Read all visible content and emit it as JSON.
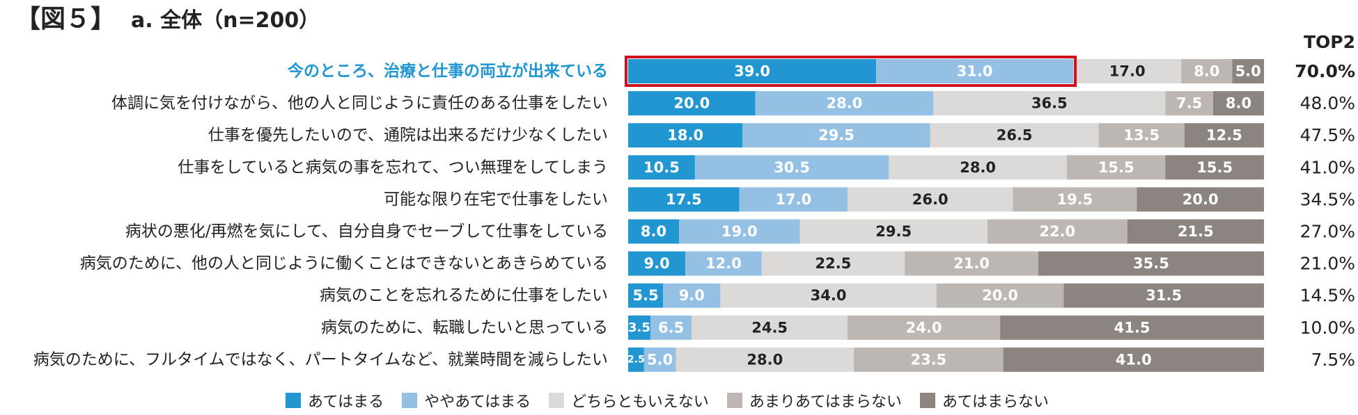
{
  "title": {
    "figure": "【図５】",
    "subtitle": "a. 全体（n=200）"
  },
  "top2_header": "TOP2",
  "colors": {
    "strong_agree": "#2196d0",
    "agree": "#94c1e3",
    "neutral": "#dcdad9",
    "disagree": "#bcb7b3",
    "strong_disagree": "#8c8480",
    "highlight_label": "#1f96d0",
    "highlight_box": "#d0101a",
    "text_dark": "#222222",
    "text_light": "#ffffff"
  },
  "chart_data": {
    "type": "bar",
    "orientation": "horizontal",
    "stacked": true,
    "unit": "%",
    "xlim": [
      0,
      100
    ],
    "categories": [
      "今のところ、治療と仕事の両立が出来ている",
      "体調に気を付けながら、他の人と同じように責任のある仕事をしたい",
      "仕事を優先したいので、通院は出来るだけ少なくしたい",
      "仕事をしていると病気の事を忘れて、つい無理をしてしまう",
      "可能な限り在宅で仕事をしたい",
      "病状の悪化/再燃を気にして、自分自身でセーブして仕事をしている",
      "病気のために、他の人と同じように働くことはできないとあきらめている",
      "病気のことを忘れるために仕事をしたい",
      "病気のために、転職したいと思っている",
      "病気のために、フルタイムではなく、パートタイムなど、就業時間を減らしたい"
    ],
    "series": [
      {
        "name": "あてはまる",
        "values": [
          39.0,
          20.0,
          18.0,
          10.5,
          17.5,
          8.0,
          9.0,
          5.5,
          3.5,
          2.5
        ]
      },
      {
        "name": "ややあてはまる",
        "values": [
          31.0,
          28.0,
          29.5,
          30.5,
          17.0,
          19.0,
          12.0,
          9.0,
          6.5,
          5.0
        ]
      },
      {
        "name": "どちらともいえない",
        "values": [
          17.0,
          36.5,
          26.5,
          28.0,
          26.0,
          29.5,
          22.5,
          34.0,
          24.5,
          28.0
        ]
      },
      {
        "name": "あまりあてはまらない",
        "values": [
          8.0,
          7.5,
          13.5,
          15.5,
          19.5,
          22.0,
          21.0,
          20.0,
          24.0,
          23.5
        ]
      },
      {
        "name": "あてはまらない",
        "values": [
          5.0,
          8.0,
          12.5,
          15.5,
          20.0,
          21.5,
          35.5,
          31.5,
          41.5,
          41.0
        ]
      }
    ],
    "top2": [
      "70.0%",
      "48.0%",
      "47.5%",
      "41.0%",
      "34.5%",
      "27.0%",
      "21.0%",
      "14.5%",
      "10.0%",
      "7.5%"
    ],
    "highlighted_category_index": 0
  }
}
